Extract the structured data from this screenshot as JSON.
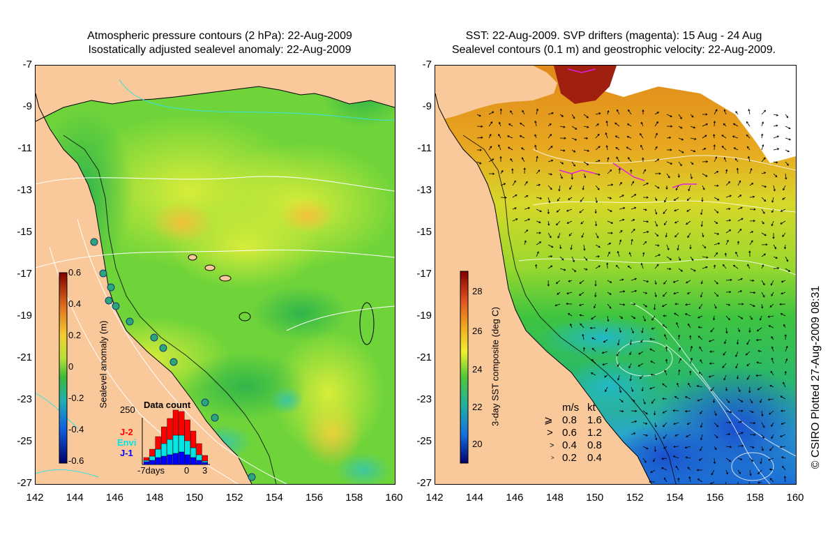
{
  "left_panel": {
    "title_line1": "Atmospheric pressure contours (2 hPa): 22-Aug-2009",
    "title_line2": "Isostatically adjusted sealevel anomaly: 22-Aug-2009",
    "colorbar": {
      "label": "Sealevel anomaly (m)",
      "ticks": [
        "0.6",
        "0.4",
        "0.2",
        "0",
        "-0.2",
        "-0.4",
        "-0.6"
      ]
    },
    "inset": {
      "title": "Data count",
      "ymax": "250",
      "series": [
        {
          "name": "J-2",
          "color": "#ff0000"
        },
        {
          "name": "Envi",
          "color": "#00e5e5"
        },
        {
          "name": "J-1",
          "color": "#0000ff"
        }
      ],
      "xlabel_left": "-7days",
      "xlabel_mid": "0",
      "xlabel_right": "3"
    }
  },
  "right_panel": {
    "title_line1": "SST: 22-Aug-2009. SVP drifters (magenta): 15 Aug - 24 Aug",
    "title_line2": "Sealevel contours (0.1 m) and geostrophic velocity: 22-Aug-2009.",
    "colorbar": {
      "label": "3-day SST composite (deg C)",
      "ticks": [
        "28",
        "26",
        "24",
        "22",
        "20"
      ]
    },
    "legend": {
      "header_ms": "m/s",
      "header_kt": "kt",
      "rows": [
        {
          "ms": "0.8",
          "kt": "1.6"
        },
        {
          "ms": "0.6",
          "kt": "1.2"
        },
        {
          "ms": "0.4",
          "kt": "0.8"
        },
        {
          "ms": "0.2",
          "kt": "0.4"
        }
      ]
    }
  },
  "axes": {
    "y_ticks": [
      "-7",
      "-9",
      "-11",
      "-13",
      "-15",
      "-17",
      "-19",
      "-21",
      "-23",
      "-25",
      "-27"
    ],
    "x_ticks": [
      "142",
      "144",
      "146",
      "148",
      "150",
      "152",
      "154",
      "156",
      "158",
      "160"
    ]
  },
  "credit": "© CSIRO Plotted 27-Aug-2009 08:31",
  "colors": {
    "land": "#f9c89b",
    "ocean_sla": "#7ee03a",
    "ocean_sst": "#3bc843"
  }
}
